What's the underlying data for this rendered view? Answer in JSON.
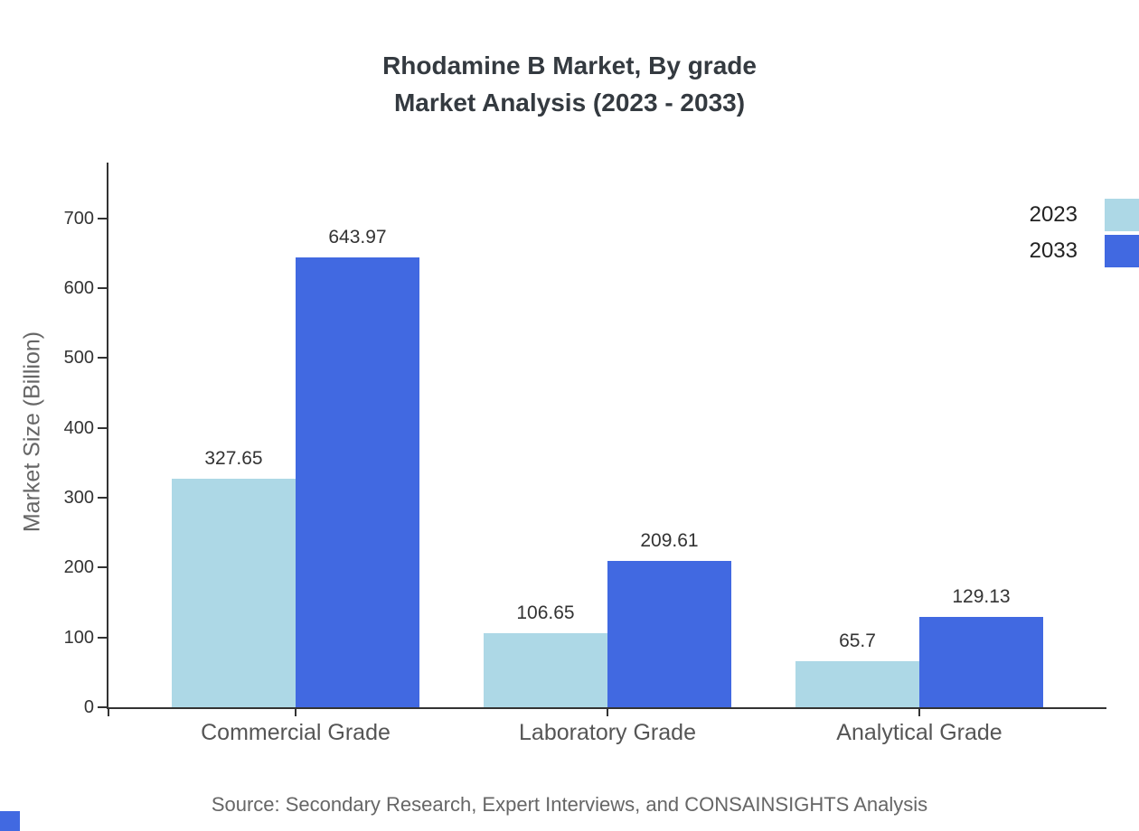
{
  "header": {
    "title_line1": "Rhodamine B Market, By grade",
    "title_line2": "Market Analysis (2023 - 2033)"
  },
  "footer": {
    "source": "Source: Secondary Research, Expert Interviews, and CONSAINSIGHTS Analysis"
  },
  "chart_data": {
    "type": "bar",
    "title": "Rhodamine B Market, By grade Market Analysis (2023 - 2033)",
    "categories": [
      "Commercial Grade",
      "Laboratory Grade",
      "Analytical Grade"
    ],
    "series": [
      {
        "name": "2023",
        "color": "#add8e6",
        "values": [
          327.65,
          106.65,
          65.7
        ]
      },
      {
        "name": "2033",
        "color": "#4169e1",
        "values": [
          643.97,
          209.61,
          129.13
        ]
      }
    ],
    "xlabel": "",
    "ylabel": "Market Size (Billion)",
    "ylim": [
      0,
      780
    ],
    "ytick_step": 100,
    "ytick_max": 700,
    "grid": false,
    "legend_position": "top-right"
  }
}
